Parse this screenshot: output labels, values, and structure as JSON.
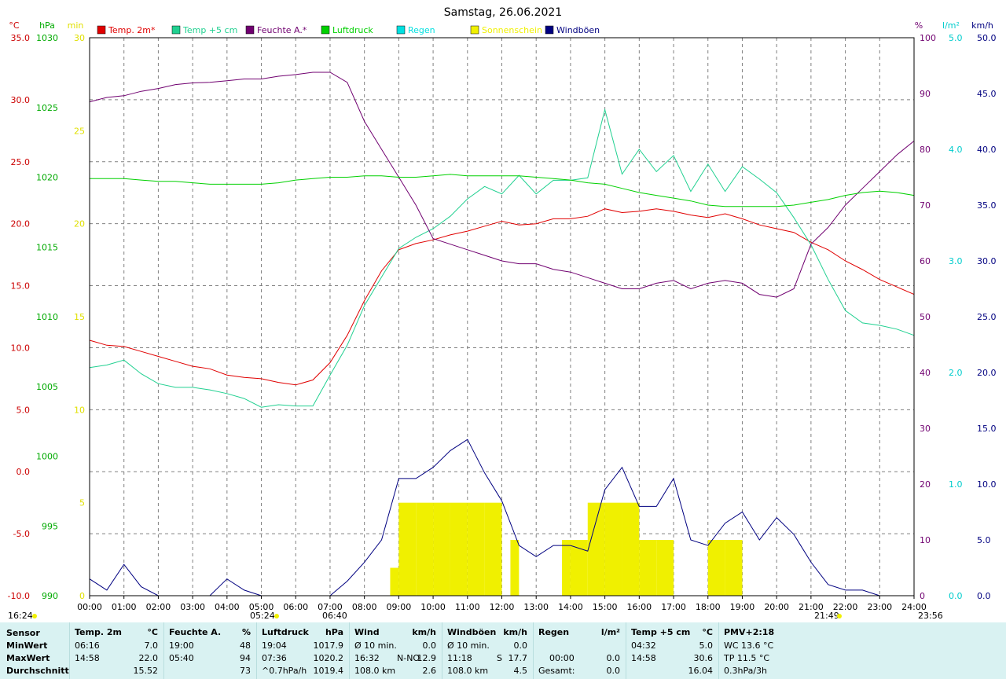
{
  "page": {
    "title": "Samstag, 26.06.2021"
  },
  "legend": [
    {
      "name": "Temp. 2m*",
      "color": "#e00000"
    },
    {
      "name": "Temp +5 cm",
      "color": "#20d090"
    },
    {
      "name": "Feuchte A.*",
      "color": "#700070"
    },
    {
      "name": "Luftdruck",
      "color": "#00d000"
    },
    {
      "name": "Regen",
      "color": "#00e0e0"
    },
    {
      "name": "Sonnenschein",
      "color": "#f0f000"
    },
    {
      "name": "Windböen",
      "color": "#000080"
    }
  ],
  "axis_units": {
    "temp": "°C",
    "pressure": "hPa",
    "sun": "min",
    "humidity": "%",
    "rain": "l/m²",
    "wind": "km/h"
  },
  "sun_events": {
    "left": "16:24",
    "sunrise": "05:24",
    "sunset": "21:49",
    "end": "23:56",
    "marker": "06:40"
  },
  "chart_data": {
    "type": "line",
    "title": "Samstag, 26.06.2021",
    "x_ticks": [
      "00:00",
      "01:00",
      "02:00",
      "03:00",
      "04:00",
      "05:00",
      "06:00",
      "07:00",
      "08:00",
      "09:00",
      "10:00",
      "11:00",
      "12:00",
      "13:00",
      "14:00",
      "15:00",
      "16:00",
      "17:00",
      "18:00",
      "19:00",
      "20:00",
      "21:00",
      "22:00",
      "23:00",
      "24:00"
    ],
    "xlim": [
      0,
      24
    ],
    "axes": {
      "temp": {
        "ylim": [
          -10,
          35
        ],
        "ticks": [
          "35.0",
          "30.0",
          "25.0",
          "20.0",
          "15.0",
          "10.0",
          "5.0",
          "0.0",
          "-5.0",
          "-10.0"
        ]
      },
      "pressure": {
        "ylim": [
          990,
          1030
        ],
        "ticks": [
          "1030",
          "1025",
          "1020",
          "1015",
          "1010",
          "1005",
          "1000",
          "995",
          "990"
        ]
      },
      "sun": {
        "ylim": [
          0,
          30
        ],
        "ticks": [
          "30",
          "25",
          "20",
          "15",
          "10",
          "5",
          "0"
        ]
      },
      "humidity": {
        "ylim": [
          0,
          100
        ],
        "ticks": [
          "100",
          "90",
          "80",
          "70",
          "60",
          "50",
          "40",
          "30",
          "20",
          "10",
          "0"
        ]
      },
      "rain": {
        "ylim": [
          0,
          5
        ],
        "ticks": [
          "5.0",
          "4.0",
          "3.0",
          "2.0",
          "1.0",
          "0.0"
        ]
      },
      "wind": {
        "ylim": [
          0,
          50
        ],
        "ticks": [
          "50.0",
          "45.0",
          "40.0",
          "35.0",
          "30.0",
          "25.0",
          "20.0",
          "15.0",
          "10.0",
          "5.0",
          "0.0"
        ]
      }
    },
    "series": [
      {
        "name": "Temp. 2m*",
        "axis": "temp",
        "x": [
          0,
          0.5,
          1,
          1.5,
          2,
          2.5,
          3,
          3.5,
          4,
          4.5,
          5,
          5.5,
          6,
          6.5,
          7,
          7.5,
          8,
          8.5,
          9,
          9.5,
          10,
          10.5,
          11,
          11.5,
          12,
          12.5,
          13,
          13.5,
          14,
          14.5,
          15,
          15.5,
          16,
          16.5,
          17,
          17.5,
          18,
          18.5,
          19,
          19.5,
          20,
          20.5,
          21,
          21.5,
          22,
          22.5,
          23,
          23.5,
          24
        ],
        "y": [
          10.6,
          10.2,
          10.1,
          9.7,
          9.3,
          8.9,
          8.5,
          8.3,
          7.8,
          7.6,
          7.5,
          7.2,
          7.0,
          7.4,
          8.8,
          11.0,
          13.8,
          16.2,
          17.9,
          18.4,
          18.7,
          19.1,
          19.4,
          19.8,
          20.2,
          19.9,
          20.0,
          20.4,
          20.4,
          20.6,
          21.2,
          20.9,
          21.0,
          21.2,
          21.0,
          20.7,
          20.5,
          20.8,
          20.4,
          19.9,
          19.6,
          19.3,
          18.5,
          17.9,
          17.0,
          16.3,
          15.5,
          14.9,
          14.3
        ]
      },
      {
        "name": "Temp +5 cm",
        "axis": "temp",
        "x": [
          0,
          0.5,
          1,
          1.5,
          2,
          2.5,
          3,
          3.5,
          4,
          4.5,
          5,
          5.5,
          6,
          6.5,
          7,
          7.5,
          8,
          8.5,
          9,
          9.5,
          10,
          10.5,
          11,
          11.5,
          12,
          12.5,
          13,
          13.5,
          14,
          14.5,
          15,
          15.5,
          16,
          16.5,
          17,
          17.5,
          18,
          18.5,
          19,
          19.5,
          20,
          20.5,
          21,
          21.5,
          22,
          22.5,
          23,
          23.5,
          24
        ],
        "y": [
          8.4,
          8.6,
          9.0,
          7.9,
          7.1,
          6.8,
          6.8,
          6.6,
          6.3,
          5.9,
          5.2,
          5.4,
          5.3,
          5.3,
          7.8,
          10.2,
          13.4,
          15.7,
          18.0,
          18.9,
          19.6,
          20.6,
          22.0,
          23.0,
          22.4,
          23.9,
          22.4,
          23.5,
          23.5,
          23.7,
          29.2,
          24.0,
          26.0,
          24.2,
          25.5,
          22.6,
          24.8,
          22.6,
          24.6,
          23.6,
          22.5,
          20.5,
          18.3,
          15.5,
          13.0,
          12.0,
          11.8,
          11.5,
          11.0
        ]
      },
      {
        "name": "Feuchte A.*",
        "axis": "humidity",
        "x": [
          0,
          0.5,
          1,
          1.5,
          2,
          2.5,
          3,
          3.5,
          4,
          4.5,
          5,
          5.5,
          6,
          6.5,
          7,
          7.5,
          8,
          8.5,
          9,
          9.5,
          10,
          10.5,
          11,
          11.5,
          12,
          12.5,
          13,
          13.5,
          14,
          14.5,
          15,
          15.5,
          16,
          16.5,
          17,
          17.5,
          18,
          18.5,
          19,
          19.5,
          20,
          20.5,
          21,
          21.5,
          22,
          22.5,
          23,
          23.5,
          24
        ],
        "y": [
          88.5,
          89.3,
          89.6,
          90.4,
          90.9,
          91.6,
          91.9,
          92.0,
          92.3,
          92.6,
          92.6,
          93.1,
          93.4,
          93.8,
          93.8,
          92.0,
          85.0,
          80.0,
          75.0,
          70.0,
          64.0,
          63.0,
          62.0,
          61.0,
          60.0,
          59.5,
          59.5,
          58.5,
          58.0,
          57.0,
          56.0,
          55.0,
          55.0,
          56.0,
          56.5,
          55.0,
          56.0,
          56.5,
          56.0,
          54.0,
          53.5,
          55.0,
          63.0,
          66.0,
          70.0,
          73.0,
          76.0,
          79.0,
          81.5
        ]
      },
      {
        "name": "Luftdruck",
        "axis": "pressure",
        "x": [
          0,
          0.5,
          1,
          1.5,
          2,
          2.5,
          3,
          3.5,
          4,
          4.5,
          5,
          5.5,
          6,
          6.5,
          7,
          7.5,
          8,
          8.5,
          9,
          9.5,
          10,
          10.5,
          11,
          11.5,
          12,
          12.5,
          13,
          13.5,
          14,
          14.5,
          15,
          15.5,
          16,
          16.5,
          17,
          17.5,
          18,
          18.5,
          19,
          19.5,
          20,
          20.5,
          21,
          21.5,
          22,
          22.5,
          23,
          23.5,
          24
        ],
        "y": [
          1019.9,
          1019.9,
          1019.9,
          1019.8,
          1019.7,
          1019.7,
          1019.6,
          1019.5,
          1019.5,
          1019.5,
          1019.5,
          1019.6,
          1019.8,
          1019.9,
          1020.0,
          1020.0,
          1020.1,
          1020.1,
          1020.0,
          1020.0,
          1020.1,
          1020.2,
          1020.1,
          1020.1,
          1020.1,
          1020.1,
          1020.0,
          1019.9,
          1019.8,
          1019.6,
          1019.5,
          1019.2,
          1018.9,
          1018.7,
          1018.5,
          1018.3,
          1018.0,
          1017.9,
          1017.9,
          1017.9,
          1017.9,
          1018.0,
          1018.2,
          1018.4,
          1018.7,
          1018.9,
          1019.0,
          1018.9,
          1018.7
        ]
      },
      {
        "name": "Windböen",
        "axis": "wind",
        "x": [
          0,
          0.5,
          1,
          1.5,
          2,
          2.5,
          3,
          3.5,
          4,
          4.5,
          5,
          5.5,
          6,
          6.5,
          7,
          7.5,
          8,
          8.5,
          9,
          9.5,
          10,
          10.5,
          11,
          11.5,
          12,
          12.5,
          13,
          13.5,
          14,
          14.5,
          15,
          15.5,
          16,
          16.5,
          17,
          17.5,
          18,
          18.5,
          19,
          19.5,
          20,
          20.5,
          21,
          21.5,
          22,
          22.5,
          23,
          23.5,
          24
        ],
        "y": [
          1.5,
          0.5,
          2.8,
          0.8,
          0.0,
          0.0,
          0.0,
          0.0,
          1.5,
          0.5,
          0.0,
          0.0,
          0.0,
          0.0,
          0.0,
          1.3,
          3.0,
          5.0,
          10.5,
          10.5,
          11.5,
          13.0,
          14.0,
          11.0,
          8.5,
          4.5,
          3.5,
          4.5,
          4.5,
          4.0,
          9.5,
          11.5,
          8.0,
          8.0,
          10.5,
          5.0,
          4.5,
          6.5,
          7.5,
          5.0,
          7.0,
          5.5,
          3.0,
          1.0,
          0.5,
          0.5,
          0.0,
          0.0,
          0.0
        ]
      },
      {
        "name": "Sonnenschein",
        "axis": "sun",
        "x": [
          8.75,
          9,
          9.5,
          10,
          10.5,
          11,
          11.5,
          12,
          12.25,
          12.5,
          13,
          13.5,
          13.75,
          14,
          14.5,
          15,
          15.5,
          16,
          16.5,
          17,
          17.5,
          18,
          18.5,
          19
        ],
        "y": [
          1.5,
          5,
          5,
          5,
          5,
          5,
          5,
          0,
          3,
          0,
          0,
          0,
          3,
          3,
          5,
          5,
          5,
          3,
          3,
          0,
          0,
          3,
          3,
          0
        ]
      }
    ]
  },
  "stats_table": {
    "row_labels": {
      "sensor": "Sensor",
      "min": "MinWert",
      "max": "MaxWert",
      "avg": "Durchschnitt"
    },
    "temp2m": {
      "title": "Temp. 2m",
      "unit": "°C",
      "min_time": "06:16",
      "min_val": "7.0",
      "max_time": "14:58",
      "max_val": "22.0",
      "avg": "15.52"
    },
    "humidity": {
      "title": "Feuchte A.",
      "unit": "%",
      "min_time": "19:00",
      "min_val": "48",
      "max_time": "05:40",
      "max_val": "94",
      "avg": "73"
    },
    "pressure": {
      "title": "Luftdruck",
      "unit": "hPa",
      "min_time": "19:04",
      "min_val": "1017.9",
      "max_time": "07:36",
      "max_val": "1020.2",
      "trend": "^0.7hPa/h",
      "avg": "1019.4"
    },
    "wind": {
      "title": "Wind",
      "unit": "km/h",
      "min_label": "Ø 10 min.",
      "min_val": "0.0",
      "max_time": "16:32",
      "max_dir": "N-NO",
      "max_val": "12.9",
      "dist": "108.0 km",
      "avg": "2.6"
    },
    "gusts": {
      "title": "Windböen",
      "unit": "km/h",
      "min_label": "Ø 10 min.",
      "min_val": "0.0",
      "max_time": "11:18",
      "max_dir": "S",
      "max_val": "17.7",
      "dist": "108.0 km",
      "avg": "4.5"
    },
    "rain": {
      "title": "Regen",
      "unit": "l/m²",
      "max_time": "00:00",
      "max_val": "0.0",
      "min_val": "0.0",
      "total_label": "Gesamt:",
      "total": "0.0"
    },
    "temp5": {
      "title": "Temp +5 cm",
      "unit": "°C",
      "min_time": "04:32",
      "min_val": "5.0",
      "max_time": "14:58",
      "max_val": "30.6",
      "avg": "16.04"
    },
    "pmv": {
      "title": "PMV+2:18",
      "l1": "WC 13.6 °C",
      "l2": "TP 11.5 °C",
      "l3": "0.3hPa/3h"
    }
  }
}
